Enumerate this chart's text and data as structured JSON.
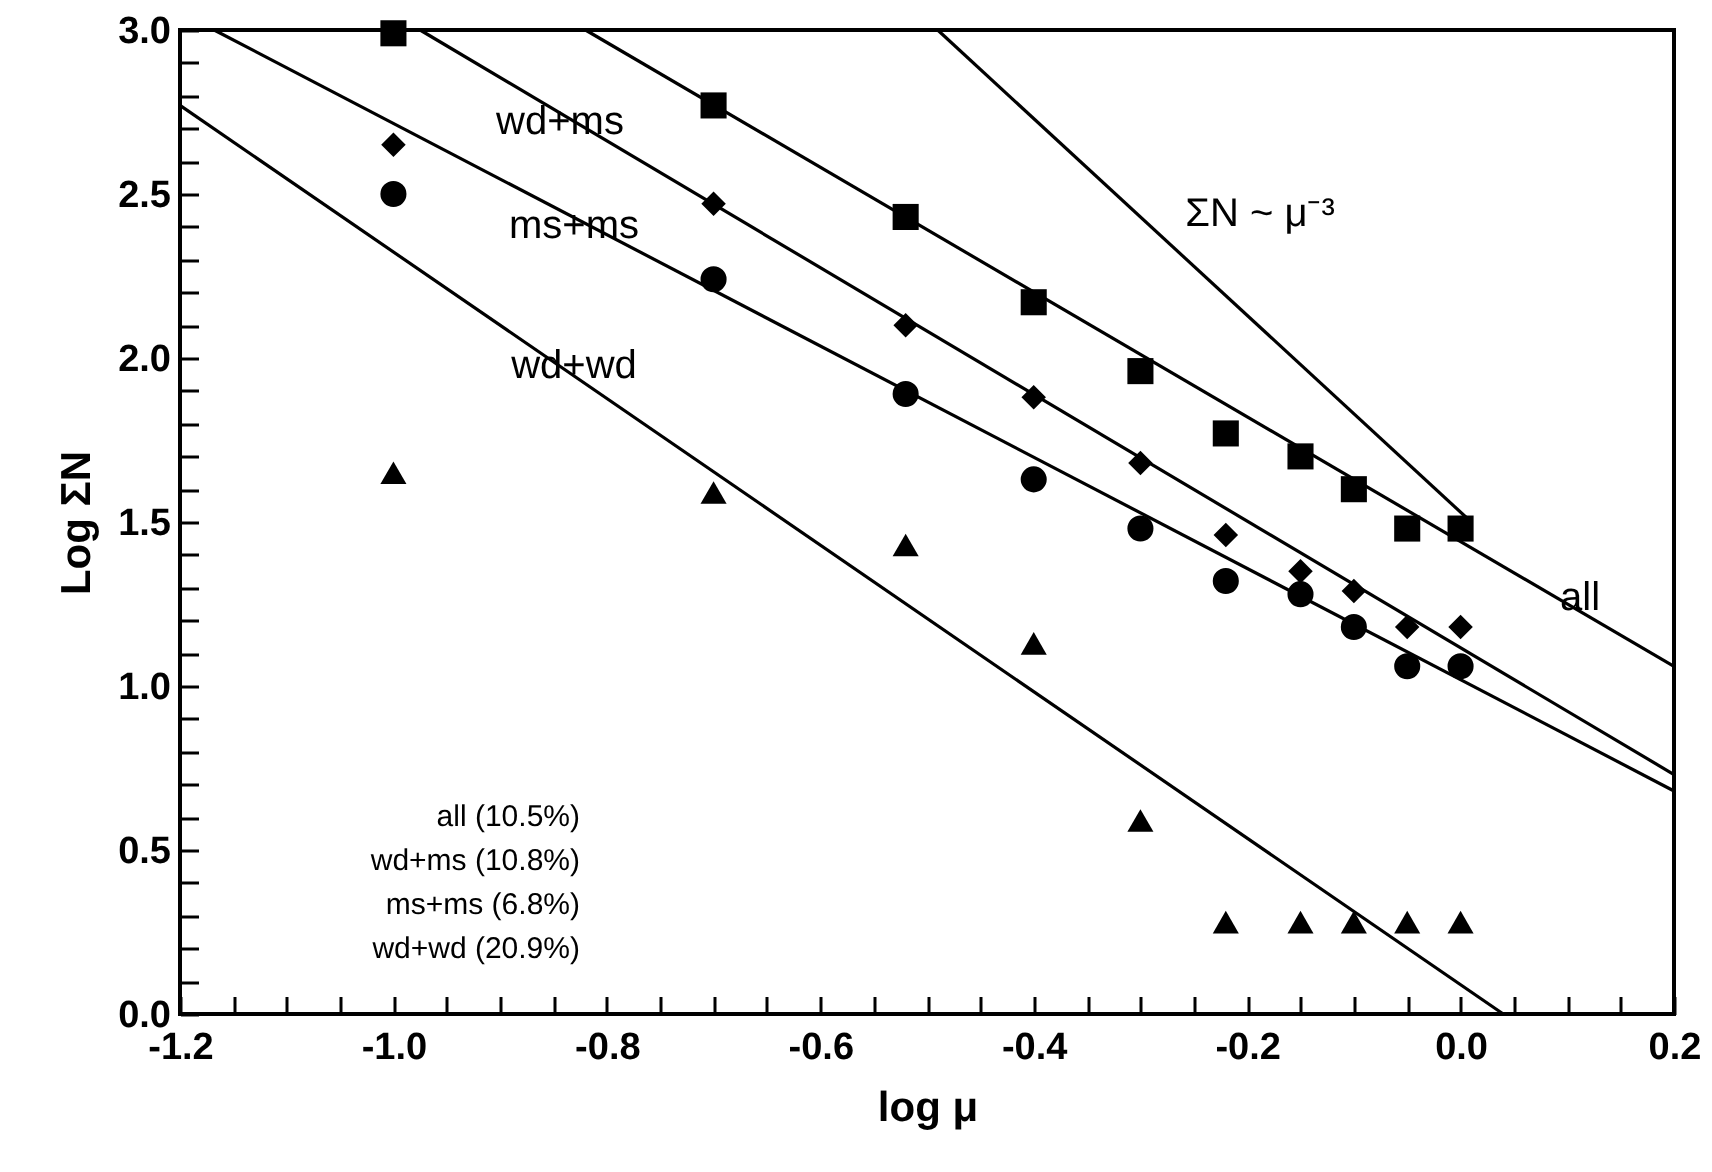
{
  "chart_data": {
    "type": "scatter",
    "xlabel": "log    μ",
    "ylabel": "Log  ΣN",
    "xlim": [
      -1.2,
      0.2
    ],
    "ylim": [
      0,
      3
    ],
    "xticks": [
      {
        "value": -1.2,
        "label": "-1.2"
      },
      {
        "value": -1.15,
        "label": null
      },
      {
        "value": -1.1,
        "label": null
      },
      {
        "value": -1.05,
        "label": null
      },
      {
        "value": -1,
        "label": "-1.0"
      },
      {
        "value": -0.95,
        "label": null
      },
      {
        "value": -0.9,
        "label": null
      },
      {
        "value": -0.85,
        "label": null
      },
      {
        "value": -0.8,
        "label": "-0.8"
      },
      {
        "value": -0.75,
        "label": null
      },
      {
        "value": -0.7,
        "label": null
      },
      {
        "value": -0.65,
        "label": null
      },
      {
        "value": -0.6,
        "label": "-0.6"
      },
      {
        "value": -0.55,
        "label": null
      },
      {
        "value": -0.5,
        "label": null
      },
      {
        "value": -0.45,
        "label": null
      },
      {
        "value": -0.4,
        "label": "-0.4"
      },
      {
        "value": -0.35,
        "label": null
      },
      {
        "value": -0.3,
        "label": null
      },
      {
        "value": -0.25,
        "label": null
      },
      {
        "value": -0.2,
        "label": "-0.2"
      },
      {
        "value": -0.15,
        "label": null
      },
      {
        "value": -0.1,
        "label": null
      },
      {
        "value": -0.05,
        "label": null
      },
      {
        "value": 0,
        "label": "0.0"
      },
      {
        "value": 0.05,
        "label": null
      },
      {
        "value": 0.1,
        "label": null
      },
      {
        "value": 0.15,
        "label": null
      },
      {
        "value": 0.2,
        "label": "0.2"
      }
    ],
    "yticks": [
      {
        "value": 0,
        "label": "0.0"
      },
      {
        "value": 0.1,
        "label": null
      },
      {
        "value": 0.2,
        "label": null
      },
      {
        "value": 0.3,
        "label": null
      },
      {
        "value": 0.4,
        "label": null
      },
      0.5,
      {
        "value": 0.6,
        "label": null
      },
      {
        "value": 0.7,
        "label": null
      },
      {
        "value": 0.8,
        "label": null
      },
      {
        "value": 0.9,
        "label": null
      },
      {
        "value": 1,
        "label": "1.0"
      },
      {
        "value": 1.1,
        "label": null
      },
      {
        "value": 1.2,
        "label": null
      },
      {
        "value": 1.3,
        "label": null
      },
      {
        "value": 1.4,
        "label": null
      },
      1.5,
      {
        "value": 1.6,
        "label": null
      },
      {
        "value": 1.7,
        "label": null
      },
      {
        "value": 1.8,
        "label": null
      },
      {
        "value": 1.9,
        "label": null
      },
      {
        "value": 2,
        "label": "2.0"
      },
      {
        "value": 2.1,
        "label": null
      },
      {
        "value": 2.2,
        "label": null
      },
      {
        "value": 2.3,
        "label": null
      },
      {
        "value": 2.4,
        "label": null
      },
      2.5,
      {
        "value": 2.6,
        "label": null
      },
      {
        "value": 2.7,
        "label": null
      },
      {
        "value": 2.8,
        "label": null
      },
      {
        "value": 2.9,
        "label": null
      },
      {
        "value": 3,
        "label": "3.0"
      }
    ],
    "x": [
      -1.0,
      -0.7,
      -0.52,
      -0.4,
      -0.3,
      -0.22,
      -0.15,
      -0.1,
      -0.05,
      0.0
    ],
    "series": [
      {
        "marker": "square",
        "color": "#000000",
        "values": [
          2.99,
          2.77,
          2.43,
          2.17,
          1.96,
          1.77,
          1.7,
          1.6,
          1.48,
          1.48
        ]
      },
      {
        "marker": "diamond",
        "color": "#000000",
        "values": [
          2.65,
          2.47,
          2.1,
          1.88,
          1.68,
          1.46,
          1.35,
          1.29,
          1.18,
          1.18
        ]
      },
      {
        "marker": "circle",
        "color": "#000000",
        "values": [
          2.5,
          2.24,
          1.89,
          1.63,
          1.48,
          1.32,
          1.28,
          1.18,
          1.06,
          1.06
        ]
      },
      {
        "marker": "triangle",
        "color": "#000000",
        "values": [
          1.65,
          1.59,
          1.43,
          1.13,
          0.59,
          0.28,
          0.28,
          0.28,
          0.28,
          0.28
        ]
      },
      {
        "type": "line",
        "color": "#000000",
        "x": [
          -0.82,
          0.2
        ],
        "values": [
          3.0,
          1.06
        ]
      },
      {
        "type": "line",
        "color": "#000000",
        "x": [
          -0.975,
          0.2
        ],
        "values": [
          3.0,
          0.73
        ]
      },
      {
        "type": "line",
        "color": "#000000",
        "x": [
          -1.168,
          0.2
        ],
        "values": [
          3.0,
          0.68
        ]
      },
      {
        "type": "line",
        "color": "#000000",
        "x": [
          -1.2,
          0.04
        ],
        "values": [
          2.77,
          0.0
        ]
      },
      {
        "type": "line",
        "color": "#000000",
        "x": [
          -0.49,
          0.01
        ],
        "values": [
          3.0,
          1.5
        ]
      }
    ],
    "annotations": [
      "wd+ms",
      "ms+ms",
      "wd+wd",
      "ΣN ~ μ⁻³",
      "all",
      "all  (10.5%)",
      "wd+ms  (10.8%)",
      "ms+ms  (6.8%)",
      "wd+wd  (20.9%)"
    ]
  }
}
